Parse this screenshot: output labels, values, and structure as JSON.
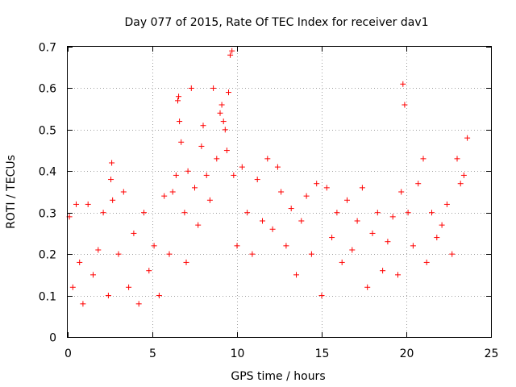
{
  "chart_data": {
    "type": "scatter",
    "title": "Day 077 of 2015, Rate Of TEC Index for receiver dav1",
    "xlabel": "GPS time / hours",
    "ylabel": "ROTI / TECUs",
    "xlim": [
      0,
      25
    ],
    "ylim": [
      0,
      0.7
    ],
    "x_ticks": [
      "0",
      "5",
      "10",
      "15",
      "20",
      "25"
    ],
    "y_ticks": [
      "0",
      "0.1",
      "0.2",
      "0.3",
      "0.4",
      "0.5",
      "0.6",
      "0.7"
    ],
    "grid": true,
    "marker": "plus",
    "color": "#ff0000",
    "series": [
      {
        "x": [
          0.1,
          0.3,
          0.5,
          0.7,
          0.9,
          1.2,
          1.5,
          1.8,
          2.1,
          2.4,
          2.55,
          2.6,
          2.65,
          3.0,
          3.3,
          3.6,
          3.9,
          4.2,
          4.5,
          4.8,
          5.1,
          5.4,
          5.7,
          6.0,
          6.2,
          6.4,
          6.5,
          6.55,
          6.6,
          6.7,
          6.9,
          7.0,
          7.1,
          7.3,
          7.5,
          7.7,
          7.9,
          8.0,
          8.2,
          8.4,
          8.6,
          8.8,
          9.0,
          9.1,
          9.2,
          9.3,
          9.4,
          9.5,
          9.6,
          9.7,
          9.8,
          10.0,
          10.3,
          10.6,
          10.9,
          11.2,
          11.5,
          11.8,
          12.1,
          12.4,
          12.6,
          12.9,
          13.2,
          13.5,
          13.8,
          14.1,
          14.4,
          14.7,
          15.0,
          15.3,
          15.6,
          15.9,
          16.2,
          16.5,
          16.8,
          17.1,
          17.4,
          17.7,
          18.0,
          18.3,
          18.6,
          18.9,
          19.2,
          19.5,
          19.7,
          19.8,
          19.9,
          20.1,
          20.4,
          20.7,
          21.0,
          21.2,
          21.5,
          21.8,
          22.1,
          22.4,
          22.7,
          23.0,
          23.2,
          23.4,
          23.6
        ],
        "y": [
          0.29,
          0.12,
          0.32,
          0.18,
          0.08,
          0.32,
          0.15,
          0.21,
          0.3,
          0.1,
          0.38,
          0.42,
          0.33,
          0.2,
          0.35,
          0.12,
          0.25,
          0.08,
          0.3,
          0.16,
          0.22,
          0.1,
          0.34,
          0.2,
          0.35,
          0.39,
          0.57,
          0.58,
          0.52,
          0.47,
          0.3,
          0.18,
          0.4,
          0.6,
          0.36,
          0.27,
          0.46,
          0.51,
          0.39,
          0.33,
          0.6,
          0.43,
          0.54,
          0.56,
          0.52,
          0.5,
          0.45,
          0.59,
          0.68,
          0.69,
          0.39,
          0.22,
          0.41,
          0.3,
          0.2,
          0.38,
          0.28,
          0.43,
          0.26,
          0.41,
          0.35,
          0.22,
          0.31,
          0.15,
          0.28,
          0.34,
          0.2,
          0.37,
          0.1,
          0.36,
          0.24,
          0.3,
          0.18,
          0.33,
          0.21,
          0.28,
          0.36,
          0.12,
          0.25,
          0.3,
          0.16,
          0.23,
          0.29,
          0.15,
          0.35,
          0.61,
          0.56,
          0.3,
          0.22,
          0.37,
          0.43,
          0.18,
          0.3,
          0.24,
          0.27,
          0.32,
          0.2,
          0.43,
          0.37,
          0.39,
          0.48
        ]
      }
    ]
  }
}
